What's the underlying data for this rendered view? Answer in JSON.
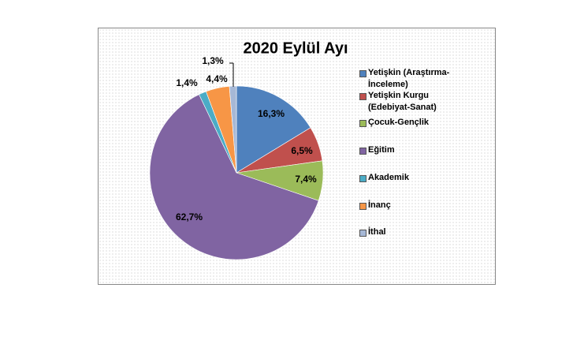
{
  "chart_data": {
    "type": "pie",
    "title": "2020 Eylül Ayı",
    "series": [
      {
        "name": "Yetişkin (Araştırma-İnceleme)",
        "color": "#4f81bd",
        "values": [
          16.3
        ],
        "value_labels": [
          "16,3%"
        ]
      },
      {
        "name": "Yetişkin Kurgu (Edebiyat-Sanat)",
        "color": "#c0504d",
        "values": [
          6.5
        ],
        "value_labels": [
          "6,5%"
        ]
      },
      {
        "name": "Çocuk-Gençlik",
        "color": "#9bbb59",
        "values": [
          7.4
        ],
        "value_labels": [
          "7,4%"
        ]
      },
      {
        "name": "Eğitim",
        "color": "#8064a2",
        "values": [
          62.7
        ],
        "value_labels": [
          "62,7%"
        ]
      },
      {
        "name": "Akademik",
        "color": "#4bacc6",
        "values": [
          1.4
        ],
        "value_labels": [
          "1,4%"
        ]
      },
      {
        "name": "İnanç",
        "color": "#f79646",
        "values": [
          4.4
        ],
        "value_labels": [
          "4,4%"
        ]
      },
      {
        "name": "İthal",
        "color": "#a6b8d6",
        "values": [
          1.3
        ],
        "value_labels": [
          "1,3%"
        ]
      }
    ]
  }
}
